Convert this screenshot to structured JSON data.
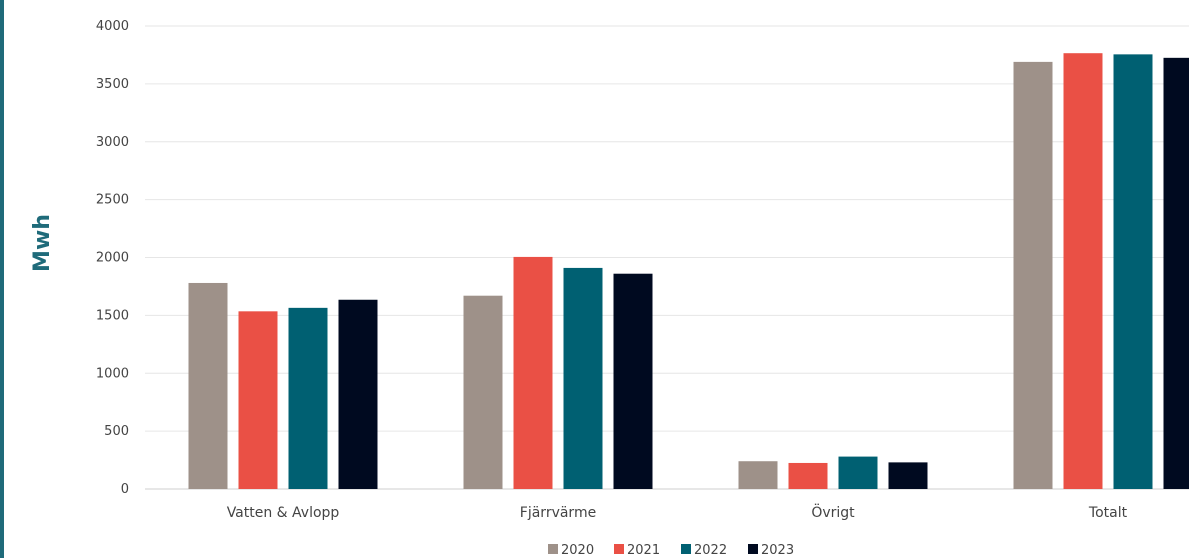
{
  "chart_data": {
    "type": "bar",
    "title": "",
    "xlabel": "",
    "ylabel": "Mwh",
    "ylim": [
      0,
      4000
    ],
    "yticks": [
      0,
      500,
      1000,
      1500,
      2000,
      2500,
      3000,
      3500,
      4000
    ],
    "grid": true,
    "legend_position": "bottom-center",
    "categories": [
      "Vatten & Avlopp",
      "Fjärrvärme",
      "Övrigt",
      "Totalt"
    ],
    "series": [
      {
        "name": "2020",
        "color": "#9e9189",
        "values": [
          1780,
          1670,
          240,
          3690
        ]
      },
      {
        "name": "2021",
        "color": "#ea5045",
        "values": [
          1535,
          2005,
          225,
          3765
        ]
      },
      {
        "name": "2022",
        "color": "#006072",
        "values": [
          1565,
          1910,
          280,
          3755
        ]
      },
      {
        "name": "2023",
        "color": "#000a20",
        "values": [
          1635,
          1860,
          230,
          3725
        ]
      }
    ]
  },
  "style": {
    "accent": "#1f6b7a",
    "grid_color": "#e6e6e6"
  }
}
